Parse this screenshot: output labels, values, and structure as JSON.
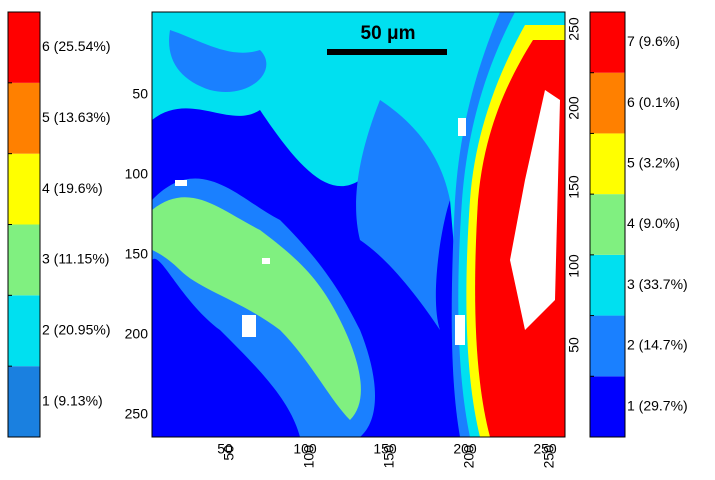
{
  "scale_bar": {
    "label": "50 μm"
  },
  "left_colorbar": {
    "items": [
      {
        "label": "1 (9.13%)",
        "color": "#1a80e0"
      },
      {
        "label": "2 (20.95%)",
        "color": "#00e0f0"
      },
      {
        "label": "3 (11.15%)",
        "color": "#80f080"
      },
      {
        "label": "4 (19.6%)",
        "color": "#ffff00"
      },
      {
        "label": "5 (13.63%)",
        "color": "#ff8000"
      },
      {
        "label": "6 (25.54%)",
        "color": "#ff0000"
      }
    ]
  },
  "right_colorbar": {
    "items": [
      {
        "label": "1 (29.7%)",
        "color": "#0000ff"
      },
      {
        "label": "2 (14.7%)",
        "color": "#1a80ff"
      },
      {
        "label": "3 (33.7%)",
        "color": "#00e0f0"
      },
      {
        "label": "4 (9.0%)",
        "color": "#80f080"
      },
      {
        "label": "5 (3.2%)",
        "color": "#ffff00"
      },
      {
        "label": "6 (0.1%)",
        "color": "#ff8000"
      },
      {
        "label": "7 (9.6%)",
        "color": "#ff0000"
      }
    ]
  },
  "image": {
    "left_ticks": [
      "50",
      "100",
      "150",
      "200",
      "250"
    ],
    "bottom_ticks": [
      "50",
      "100",
      "150",
      "200",
      "250"
    ],
    "bottom_ticks_rotated": [
      "50",
      "100",
      "150",
      "200",
      "250"
    ],
    "right_ticks": [
      "50",
      "100",
      "150",
      "200",
      "250"
    ]
  }
}
